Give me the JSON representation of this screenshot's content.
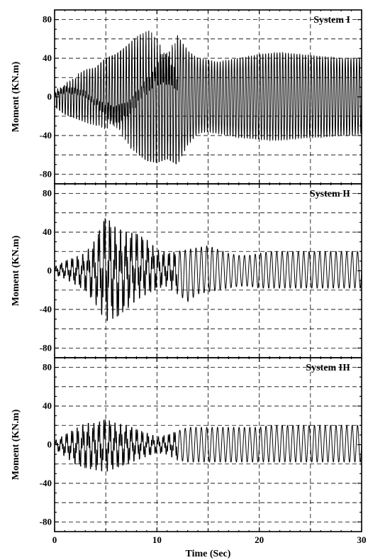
{
  "chart_data": [
    {
      "type": "line",
      "title": "System I",
      "xlabel": "",
      "ylabel": "Moment (KN.m)",
      "xlim": [
        0,
        30
      ],
      "ylim": [
        -90,
        90
      ],
      "yticks": [
        -80,
        -40,
        0,
        40,
        80
      ],
      "xticks": [
        0,
        10,
        20,
        30
      ],
      "grid": true,
      "series": [
        {
          "envelope_time": [
            0,
            1,
            2,
            3,
            4,
            5,
            6,
            7,
            8,
            9,
            10,
            11,
            12,
            13,
            14,
            15,
            16,
            17,
            18,
            19,
            20,
            21,
            22,
            23,
            24,
            25,
            26,
            27,
            28,
            29,
            30
          ],
          "envelope_pos": [
            8,
            18,
            22,
            28,
            30,
            40,
            44,
            52,
            62,
            68,
            70,
            66,
            64,
            48,
            40,
            38,
            36,
            38,
            40,
            42,
            44,
            45,
            46,
            45,
            44,
            43,
            42,
            41,
            40,
            40,
            40
          ],
          "envelope_neg": [
            -10,
            -18,
            -22,
            -26,
            -30,
            -38,
            -44,
            -50,
            -58,
            -66,
            -68,
            -64,
            -70,
            -50,
            -38,
            -36,
            -38,
            -40,
            -42,
            -43,
            -44,
            -45,
            -45,
            -44,
            -43,
            -42,
            -42,
            -41,
            -40,
            -40,
            -38
          ],
          "frequency_hz": 3.6
        }
      ]
    },
    {
      "type": "line",
      "title": "System II",
      "xlabel": "",
      "ylabel": "Moment (KN.m)",
      "xlim": [
        0,
        30
      ],
      "ylim": [
        -90,
        90
      ],
      "yticks": [
        -80,
        -40,
        0,
        40,
        80
      ],
      "xticks": [
        0,
        10,
        20,
        30
      ],
      "grid": true,
      "series": [
        {
          "envelope_time": [
            0,
            1,
            2,
            3,
            4,
            5,
            6,
            7,
            8,
            9,
            10,
            11,
            12,
            13,
            14,
            15,
            16,
            17,
            18,
            19,
            20,
            21,
            22,
            23,
            24,
            25,
            26,
            27,
            28,
            29,
            30
          ],
          "envelope_pos": [
            4,
            10,
            14,
            18,
            32,
            56,
            44,
            40,
            38,
            32,
            22,
            18,
            20,
            22,
            24,
            26,
            22,
            18,
            16,
            16,
            18,
            20,
            20,
            20,
            20,
            20,
            20,
            20,
            20,
            20,
            20
          ],
          "envelope_neg": [
            -4,
            -8,
            -14,
            -20,
            -34,
            -52,
            -48,
            -40,
            -30,
            -24,
            -18,
            -16,
            -24,
            -32,
            -24,
            -22,
            -20,
            -18,
            -16,
            -16,
            -18,
            -18,
            -18,
            -18,
            -18,
            -18,
            -18,
            -18,
            -18,
            -18,
            -18
          ],
          "frequency_hz": 1.9
        }
      ]
    },
    {
      "type": "line",
      "title": "System III",
      "xlabel": "Time (Sec)",
      "ylabel": "Moment (KN.m)",
      "xlim": [
        0,
        30
      ],
      "ylim": [
        -90,
        90
      ],
      "yticks": [
        -80,
        -40,
        0,
        40,
        80
      ],
      "xticks": [
        0,
        10,
        20,
        30
      ],
      "xtick_labels": [
        "0",
        "10",
        "20",
        "30"
      ],
      "grid": true,
      "series": [
        {
          "envelope_time": [
            0,
            1,
            2,
            3,
            4,
            5,
            6,
            7,
            8,
            9,
            10,
            11,
            12,
            13,
            14,
            15,
            16,
            17,
            18,
            19,
            20,
            21,
            22,
            23,
            24,
            25,
            26,
            27,
            28,
            29,
            30
          ],
          "envelope_pos": [
            4,
            10,
            16,
            22,
            22,
            26,
            22,
            20,
            16,
            12,
            8,
            10,
            14,
            18,
            18,
            18,
            18,
            18,
            18,
            18,
            18,
            20,
            20,
            20,
            20,
            20,
            20,
            20,
            20,
            20,
            20
          ],
          "envelope_neg": [
            -4,
            -12,
            -20,
            -24,
            -26,
            -28,
            -24,
            -20,
            -16,
            -12,
            -8,
            -10,
            -16,
            -18,
            -18,
            -18,
            -18,
            -18,
            -18,
            -18,
            -18,
            -18,
            -18,
            -18,
            -18,
            -18,
            -18,
            -18,
            -18,
            -18,
            -18
          ],
          "frequency_hz": 1.9
        }
      ]
    }
  ]
}
